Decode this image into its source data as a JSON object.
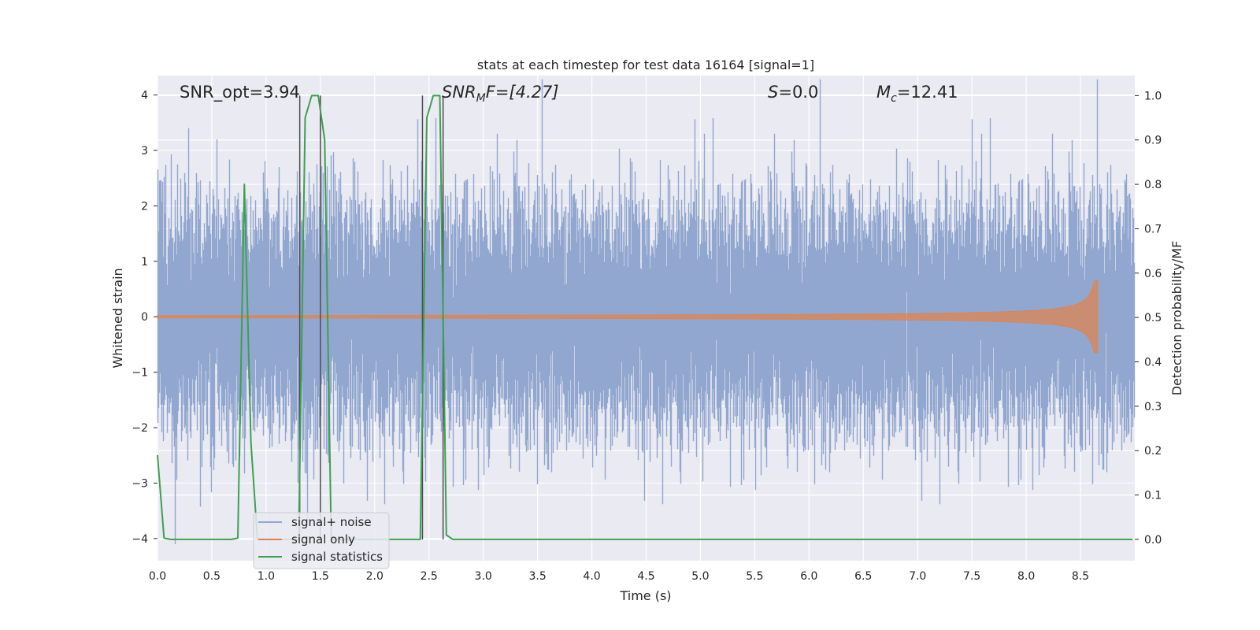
{
  "chart_data": {
    "type": "line",
    "title": "stats at each timestep for test data 16164 [signal=1]",
    "xlabel": "Time (s)",
    "ylabel": "Whitened strain",
    "y2label": "Detection probability/MF",
    "xlim": [
      0.0,
      9.0
    ],
    "ylim": [
      -4.4,
      4.35
    ],
    "y2lim": [
      -0.048,
      1.045
    ],
    "x_ticks": [
      "0.0",
      "0.5",
      "1.0",
      "1.5",
      "2.0",
      "2.5",
      "3.0",
      "3.5",
      "4.0",
      "4.5",
      "5.0",
      "5.5",
      "6.0",
      "6.5",
      "7.0",
      "7.5",
      "8.0",
      "8.5"
    ],
    "y_ticks": [
      "−4",
      "−3",
      "−2",
      "−1",
      "0",
      "1",
      "2",
      "3",
      "4"
    ],
    "y2_ticks": [
      "0.0",
      "0.1",
      "0.2",
      "0.3",
      "0.4",
      "0.5",
      "0.6",
      "0.7",
      "0.8",
      "0.9",
      "1.0"
    ],
    "grid": true,
    "legend_position": "lower-left",
    "annotations": {
      "snr_opt": "SNR_opt=3.94",
      "snr_mf_main": "SNR",
      "snr_mf_sub": "M",
      "snr_mf_rest": "F=[4.27]",
      "s_main": "S",
      "s_rest": "=0.0",
      "mc_main": "M",
      "mc_sub": "c",
      "mc_rest": "=12.41"
    },
    "vertical_markers": [
      1.31,
      1.5,
      2.44,
      2.63
    ],
    "series": [
      {
        "name": "signal+ noise",
        "color": "#92a7cf",
        "kind": "strain",
        "sample_rate": 2048,
        "duration": 9.0,
        "noise_sigma": 1.0
      },
      {
        "name": "signal only",
        "color": "#dd8452",
        "kind": "chirp",
        "end_time": 8.66,
        "peak_amplitude": 0.65
      },
      {
        "name": "signal statistics",
        "color": "#3f9f4f",
        "kind": "probability",
        "x": [
          0.0,
          0.06,
          0.12,
          0.68,
          0.74,
          0.8,
          0.86,
          0.92,
          1.3,
          1.36,
          1.42,
          1.48,
          1.54,
          1.6,
          1.7,
          2.36,
          2.42,
          2.48,
          2.54,
          2.6,
          2.66,
          2.72,
          2.8,
          8.98
        ],
        "values": [
          0.19,
          0.003,
          0.0,
          0.0,
          0.003,
          0.8,
          0.22,
          0.0,
          0.0,
          0.95,
          1.0,
          1.0,
          0.9,
          0.0,
          0.0,
          0.0,
          0.0,
          0.95,
          1.0,
          1.0,
          0.01,
          0.0,
          0.0,
          0.0
        ]
      }
    ]
  }
}
